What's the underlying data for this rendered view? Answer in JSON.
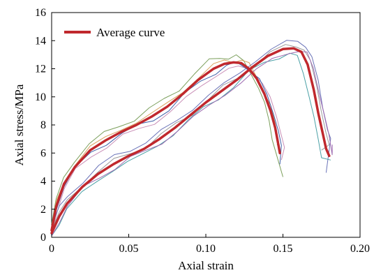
{
  "chart_data": {
    "type": "line",
    "xlabel": "Axial strain",
    "ylabel": "Axial stress/MPa",
    "xlim": [
      0,
      0.2
    ],
    "ylim": [
      0,
      16
    ],
    "x_ticks": [
      "0",
      "0.05",
      "0.10",
      "0.15",
      "0.20"
    ],
    "y_ticks": [
      "0",
      "2",
      "4",
      "6",
      "8",
      "10",
      "12",
      "14",
      "16"
    ],
    "grid": false,
    "legend": {
      "position": "top-left",
      "entries": [
        "Average curve"
      ]
    },
    "colors": {
      "average": "#c0282d",
      "samples": [
        "#7a9e5a",
        "#c98fb7",
        "#d9a05b",
        "#3f5fa8",
        "#6a73b8",
        "#4aa0a6",
        "#9a9a9a",
        "#9d6ab0"
      ]
    },
    "series": [
      {
        "name": "Average curve",
        "group": "A",
        "x": [
          0,
          0.003,
          0.008,
          0.015,
          0.025,
          0.035,
          0.045,
          0.055,
          0.065,
          0.075,
          0.085,
          0.095,
          0.105,
          0.112,
          0.118,
          0.123,
          0.128,
          0.133,
          0.138,
          0.142,
          0.145,
          0.147,
          0.148
        ],
        "y": [
          0.5,
          2.2,
          3.8,
          5.0,
          6.2,
          6.9,
          7.5,
          8.0,
          8.6,
          9.3,
          10.2,
          11.2,
          12.0,
          12.35,
          12.45,
          12.4,
          12.0,
          11.3,
          10.2,
          9.0,
          7.8,
          6.6,
          6.0
        ]
      },
      {
        "name": "Average curve",
        "group": "B",
        "x": [
          0,
          0.005,
          0.01,
          0.02,
          0.03,
          0.04,
          0.05,
          0.06,
          0.07,
          0.08,
          0.09,
          0.1,
          0.11,
          0.12,
          0.13,
          0.14,
          0.15,
          0.157,
          0.162,
          0.166,
          0.17,
          0.173,
          0.176,
          0.178,
          0.18
        ],
        "y": [
          0.3,
          1.5,
          2.4,
          3.6,
          4.5,
          5.2,
          5.8,
          6.3,
          7.0,
          7.8,
          8.7,
          9.6,
          10.4,
          11.2,
          12.1,
          12.9,
          13.4,
          13.45,
          13.2,
          12.3,
          10.5,
          8.8,
          7.3,
          6.3,
          5.8
        ]
      }
    ],
    "samples": [
      {
        "group": "A",
        "dy": 0.45,
        "dx": -0.004,
        "end": [
          0.15,
          4.3
        ]
      },
      {
        "group": "A",
        "dy": -0.35,
        "dx": 0.004,
        "end": [
          0.149,
          5.5
        ]
      },
      {
        "group": "A",
        "dy": 0.2,
        "dx": 0.0,
        "end": [
          0.146,
          6.6
        ]
      },
      {
        "group": "A",
        "dy": -0.15,
        "dx": 0.002,
        "end": [
          0.148,
          5.2
        ]
      },
      {
        "group": "B",
        "dy": 0.5,
        "dx": 0.003,
        "end": [
          0.178,
          4.6
        ]
      },
      {
        "group": "B",
        "dy": -0.45,
        "dx": -0.003,
        "end": [
          0.181,
          5.5
        ]
      },
      {
        "group": "B",
        "dy": 0.2,
        "dx": 0.002,
        "end": [
          0.175,
          6.2
        ]
      },
      {
        "group": "B",
        "dy": -0.2,
        "dx": 0.004,
        "end": [
          0.182,
          6.6
        ]
      }
    ]
  }
}
